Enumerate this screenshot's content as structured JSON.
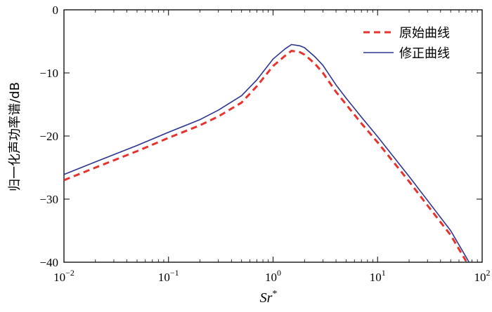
{
  "chart_data": {
    "type": "line",
    "title": "",
    "xlabel": "Sr*",
    "xlabel_main": "Sr",
    "xlabel_sup": "*",
    "ylabel": "归一化声功率谱/dB",
    "x_scale": "log",
    "xlim": [
      0.01,
      100
    ],
    "ylim": [
      -40,
      0
    ],
    "grid": false,
    "legend_position": "top-right",
    "x_ticks": [
      {
        "value": 0.01,
        "base": "10",
        "exp": "−2"
      },
      {
        "value": 0.1,
        "base": "10",
        "exp": "−1"
      },
      {
        "value": 1,
        "base": "10",
        "exp": "0"
      },
      {
        "value": 10,
        "base": "10",
        "exp": "1"
      },
      {
        "value": 100,
        "base": "10",
        "exp": "2"
      }
    ],
    "y_ticks": [
      {
        "value": 0,
        "label": "0"
      },
      {
        "value": -10,
        "label": "−10"
      },
      {
        "value": -20,
        "label": "−20"
      },
      {
        "value": -30,
        "label": "−30"
      },
      {
        "value": -40,
        "label": "−40"
      }
    ],
    "series": [
      {
        "name": "原始曲线",
        "color": "#e8322d",
        "style": "dashed",
        "x": [
          0.01,
          0.02,
          0.05,
          0.1,
          0.2,
          0.3,
          0.5,
          0.7,
          1.0,
          1.3,
          1.5,
          1.8,
          2.0,
          2.5,
          3.0,
          4.0,
          5.0,
          7.0,
          10,
          20,
          30,
          50,
          70
        ],
        "y": [
          -27.0,
          -25.0,
          -22.4,
          -20.3,
          -18.3,
          -16.9,
          -14.7,
          -12.1,
          -8.9,
          -7.3,
          -6.5,
          -6.7,
          -7.1,
          -8.5,
          -10.0,
          -13.0,
          -15.0,
          -18.0,
          -21.0,
          -27.2,
          -31.0,
          -35.7,
          -39.8
        ]
      },
      {
        "name": "修正曲线",
        "color": "#2b3590",
        "style": "solid",
        "x": [
          0.01,
          0.02,
          0.05,
          0.1,
          0.2,
          0.3,
          0.5,
          0.7,
          1.0,
          1.3,
          1.5,
          1.8,
          2.0,
          2.5,
          3.0,
          4.0,
          5.0,
          7.0,
          10,
          20,
          30,
          50,
          75
        ],
        "y": [
          -26.1,
          -24.1,
          -21.5,
          -19.4,
          -17.4,
          -15.9,
          -13.6,
          -11.1,
          -7.8,
          -6.2,
          -5.5,
          -5.7,
          -6.0,
          -7.4,
          -8.8,
          -11.9,
          -14.0,
          -17.0,
          -20.1,
          -26.4,
          -30.2,
          -35.0,
          -40.0
        ]
      }
    ]
  }
}
